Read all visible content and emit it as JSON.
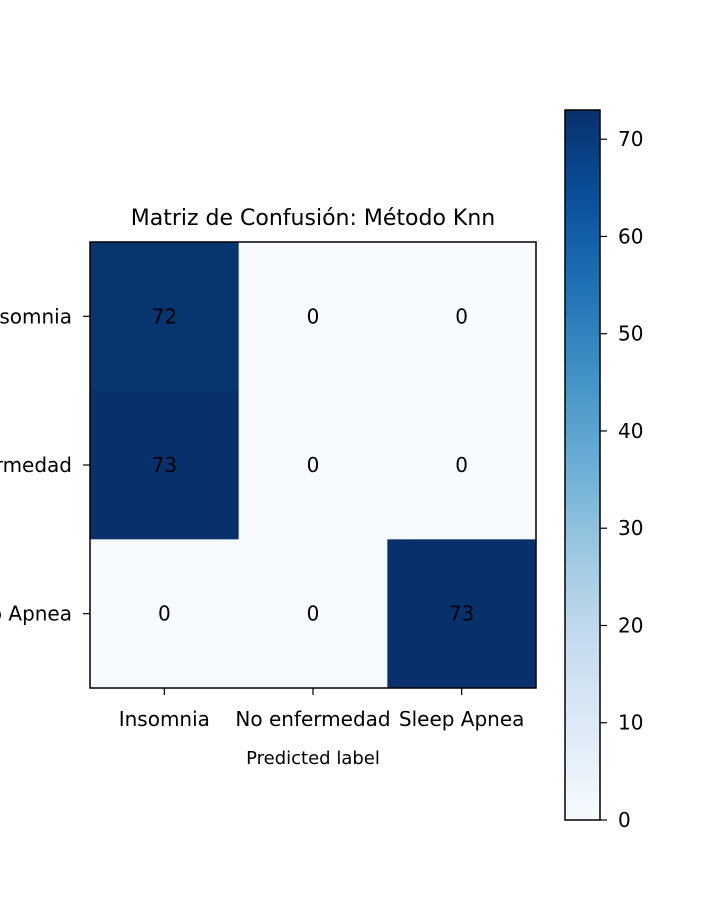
{
  "chart_data": {
    "type": "heatmap",
    "title": "Matriz de Confusión: Método Knn",
    "xlabel": "Predicted label",
    "ylabel": "",
    "x_categories": [
      "Insomnia",
      "No enfermedad",
      "Sleep Apnea"
    ],
    "y_categories": [
      "Insomnia",
      "No enfermedad",
      "Sleep Apnea"
    ],
    "values": [
      [
        72,
        0,
        0
      ],
      [
        73,
        0,
        0
      ],
      [
        0,
        0,
        73
      ]
    ],
    "colormap": "Blues",
    "colormap_low": "#f7fbff",
    "colormap_high": "#08306b",
    "text_dark": "#08306b",
    "text_light": "#ffffff",
    "colorbar": {
      "range": [
        0,
        73
      ],
      "ticks": [
        0,
        10,
        20,
        30,
        40,
        50,
        60,
        70
      ]
    }
  }
}
